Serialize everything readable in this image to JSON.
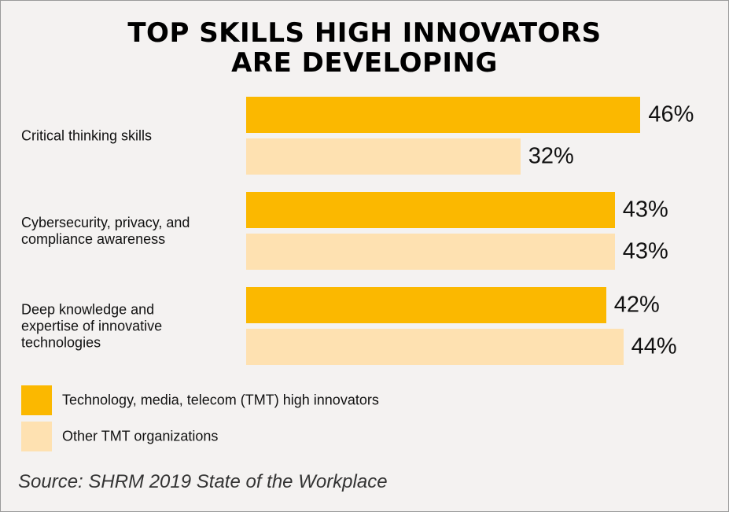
{
  "chart_data": {
    "type": "bar",
    "orientation": "horizontal",
    "title": [
      "TOP SKILLS HIGH INNOVATORS",
      "ARE DEVELOPING"
    ],
    "categories": [
      "Critical thinking skills",
      "Cybersecurity, privacy, and\ncompliance awareness",
      "Deep knowledge and\nexpertise of innovative\ntechnologies"
    ],
    "series": [
      {
        "name": "Technology, media, telecom (TMT) high innovators",
        "color": "#fbb800",
        "values": [
          46,
          43,
          42
        ],
        "value_labels": [
          "46%",
          "43%",
          "42%"
        ]
      },
      {
        "name": "Other TMT organizations",
        "color": "#fee1b1",
        "values": [
          32,
          43,
          44
        ],
        "value_labels": [
          "32%",
          "43%",
          "44%"
        ]
      }
    ],
    "source": "Source: SHRM 2019 State of the Workplace"
  }
}
